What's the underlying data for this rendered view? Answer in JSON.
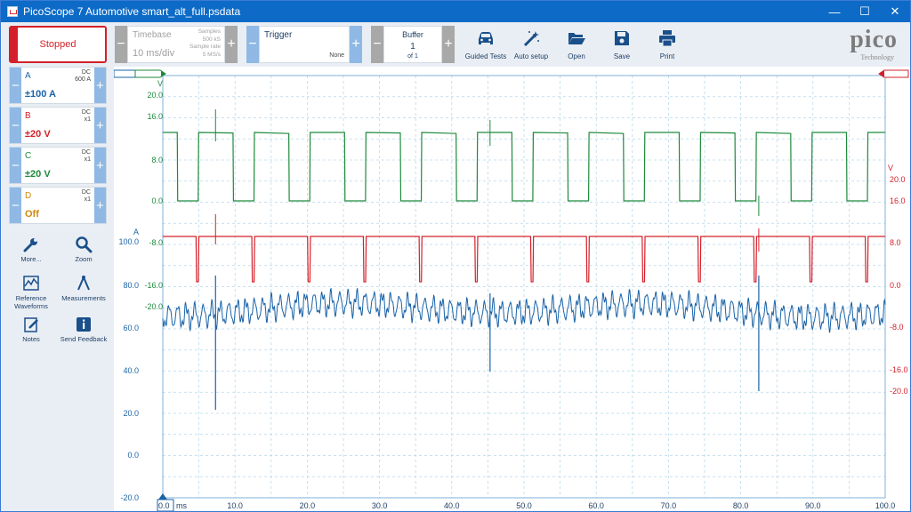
{
  "window": {
    "title": "PicoScope 7 Automotive smart_alt_full.psdata",
    "minimize_glyph": "—",
    "maximize_glyph": "☐",
    "close_glyph": "✕"
  },
  "toolbar": {
    "run_state": "Stopped",
    "timebase": {
      "title": "Timebase",
      "value": "10 ms/div",
      "samples_label": "Samples",
      "samples_value": "500 kS",
      "rate_label": "Sample rate",
      "rate_value": "5 MS/s"
    },
    "trigger": {
      "title": "Trigger",
      "mode": "None"
    },
    "buffer": {
      "title": "Buffer",
      "current": "1",
      "total": "of 1"
    },
    "tools": [
      {
        "label": "Guided Tests",
        "icon": "car-icon"
      },
      {
        "label": "Auto setup",
        "icon": "magic-wand-icon"
      },
      {
        "label": "Open",
        "icon": "folder-open-icon"
      },
      {
        "label": "Save",
        "icon": "save-icon"
      },
      {
        "label": "Print",
        "icon": "printer-icon"
      }
    ],
    "logo": {
      "word": "pico",
      "sub": "Technology"
    }
  },
  "channels": [
    {
      "name": "A",
      "coupling": "DC",
      "probe": "600 A",
      "range": "±100 A",
      "color": "#1a63a8"
    },
    {
      "name": "B",
      "coupling": "DC",
      "probe": "x1",
      "range": "±20 V",
      "color": "#d4202a"
    },
    {
      "name": "C",
      "coupling": "DC",
      "probe": "x1",
      "range": "±20 V",
      "color": "#1e8a3c"
    },
    {
      "name": "D",
      "coupling": "DC",
      "probe": "x1",
      "range": "Off",
      "color": "#d08a10"
    }
  ],
  "side_tools": [
    {
      "label": "More...",
      "icon": "wrench-icon"
    },
    {
      "label": "Zoom",
      "icon": "magnifier-icon"
    },
    {
      "label": "Reference Waveforms",
      "icon": "reference-waveform-icon"
    },
    {
      "label": "Measurements",
      "icon": "caliper-icon"
    },
    {
      "label": "Notes",
      "icon": "notes-icon"
    },
    {
      "label": "Send Feedback",
      "icon": "info-icon"
    }
  ],
  "plot": {
    "x_unit": "ms",
    "x_ticks": [
      "0.0",
      "10.0",
      "20.0",
      "30.0",
      "40.0",
      "50.0",
      "60.0",
      "70.0",
      "80.0",
      "90.0",
      "100.0"
    ],
    "green_axis": {
      "unit": "V",
      "ticks": [
        "20.0",
        "16.0",
        "8.0",
        "0.0",
        "-8.0",
        "-16.0",
        "-20.0"
      ],
      "color": "#1e8a3c"
    },
    "blue_axis": {
      "unit": "A",
      "ticks": [
        "100.0",
        "80.0",
        "60.0",
        "40.0",
        "20.0",
        "0.0",
        "-20.0"
      ],
      "color": "#1a63a8"
    },
    "red_axis": {
      "unit": "V",
      "ticks": [
        "20.0",
        "16.0",
        "8.0",
        "0.0",
        "-8.0",
        "-16.0",
        "-20.0"
      ],
      "color": "#d4202a"
    }
  }
}
